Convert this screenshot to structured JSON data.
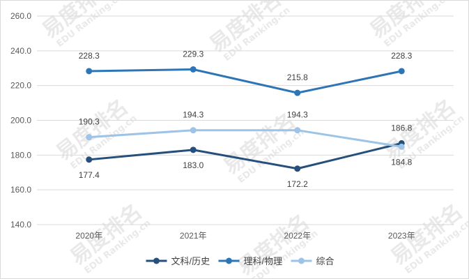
{
  "watermark": {
    "cn": "易度排名",
    "en": "EDU Ranking.cn"
  },
  "chart_data": {
    "type": "line",
    "categories": [
      "2020年",
      "2021年",
      "2022年",
      "2023年"
    ],
    "ylim": [
      140,
      260
    ],
    "yticks": [
      "140.0",
      "160.0",
      "180.0",
      "200.0",
      "220.0",
      "240.0",
      "260.0"
    ],
    "grid": true,
    "legend_position": "bottom",
    "series": [
      {
        "name": "文科/历史",
        "color": "#264f7c",
        "values": [
          177.4,
          183.0,
          172.2,
          186.8
        ],
        "labels": [
          "177.4",
          "183.0",
          "172.2",
          "186.8"
        ],
        "label_pos": [
          "below",
          "below",
          "below",
          "above"
        ]
      },
      {
        "name": "理科/物理",
        "color": "#2e75b6",
        "values": [
          228.3,
          229.3,
          215.8,
          228.3
        ],
        "labels": [
          "228.3",
          "229.3",
          "215.8",
          "228.3"
        ],
        "label_pos": [
          "above",
          "above",
          "above",
          "above"
        ]
      },
      {
        "name": "综合",
        "color": "#9dc3e6",
        "values": [
          190.3,
          194.3,
          194.3,
          184.8
        ],
        "labels": [
          "190.3",
          "194.3",
          "194.3",
          "184.8"
        ],
        "label_pos": [
          "above",
          "above",
          "above",
          "below"
        ]
      }
    ]
  }
}
